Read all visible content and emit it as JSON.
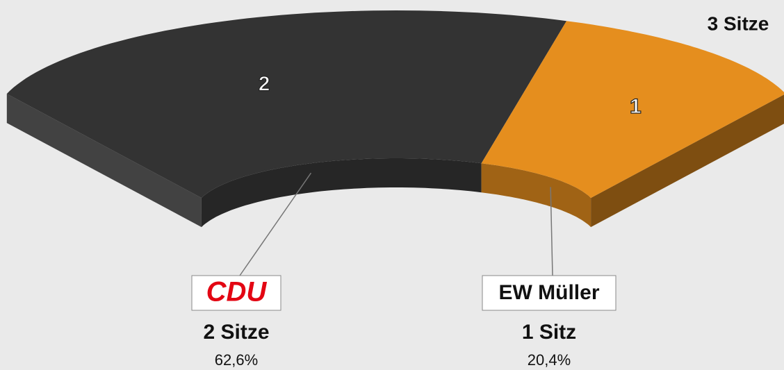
{
  "chart_data": {
    "type": "seat_arc",
    "total_label": "3 Sitze",
    "categories": [
      "CDU",
      "EW Müller"
    ],
    "values": [
      2,
      1
    ],
    "value_labels": [
      "2 Sitze",
      "1 Sitz"
    ],
    "shares": [
      62.6,
      20.4
    ],
    "share_labels": [
      "62,6%",
      "20,4%"
    ],
    "colors": [
      "#333333",
      "#e58e1e"
    ]
  }
}
